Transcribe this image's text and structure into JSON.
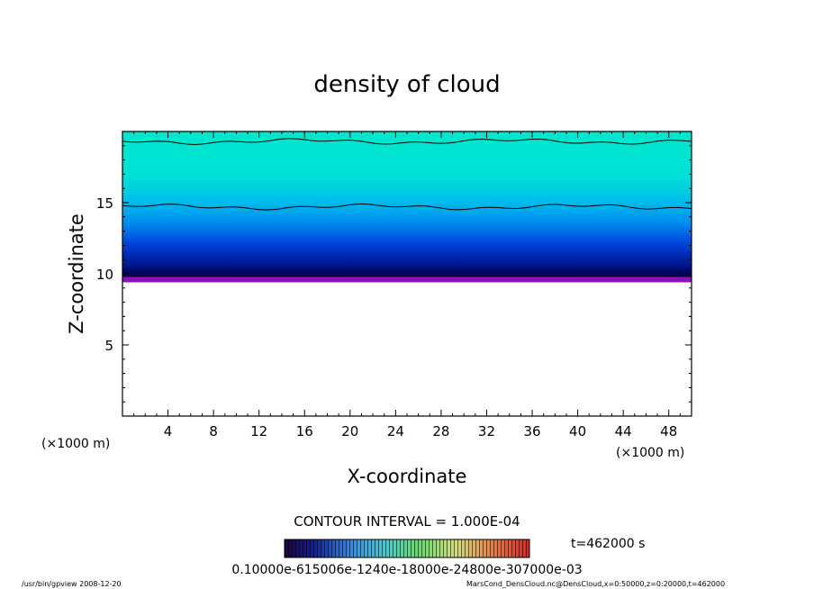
{
  "chart_data": {
    "type": "heatmap",
    "title": "density of cloud",
    "xlabel": "X-coordinate",
    "ylabel": "Z-coordinate",
    "x_unit": "(×1000 m)",
    "y_unit": "(×1000 m)",
    "xlim": [
      0,
      50
    ],
    "ylim": [
      0,
      20
    ],
    "xticks": [
      4,
      8,
      12,
      16,
      20,
      24,
      28,
      32,
      36,
      40,
      44,
      48
    ],
    "yticks": [
      5,
      10,
      15
    ],
    "contour_interval": "CONTOUR INTERVAL = 1.000E-04",
    "time_label": "t=462000 s",
    "colorbar_labels": "0.10000e-615006e-1240e-18000e-24800e-307000e-03",
    "cloud_base_z": 9.4,
    "contour_lines_z": [
      14.7,
      19.3
    ],
    "colors": {
      "layer_top": "#00e6cc",
      "layer_mid": "#00c8e6",
      "layer_blue": "#0050dc",
      "layer_dark": "#000050",
      "layer_base": "#8c14b4"
    }
  },
  "footer": {
    "left": "/usr/bin/gpview   2008-12-20",
    "right": "MarsCond_DensCloud.nc@DensCloud,x=0:50000,z=0:20000,t=462000"
  }
}
